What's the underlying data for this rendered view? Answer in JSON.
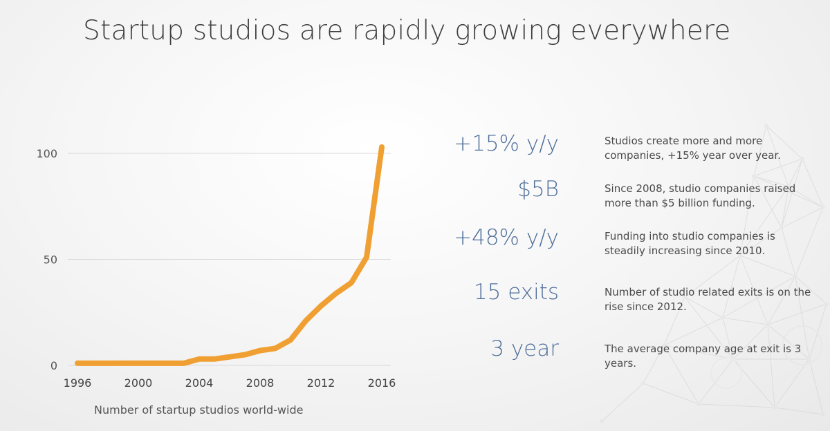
{
  "title": "Startup studios are rapidly growing everywhere",
  "caption": "Number of startup studios world-wide",
  "colors": {
    "line": "#f0a033",
    "stat": "#4f6f9a",
    "grid": "#d9d9d9"
  },
  "chart_data": {
    "type": "line",
    "x": [
      1996,
      1997,
      1998,
      1999,
      2000,
      2001,
      2002,
      2003,
      2004,
      2005,
      2006,
      2007,
      2008,
      2009,
      2010,
      2011,
      2012,
      2013,
      2014,
      2015,
      2016
    ],
    "values": [
      1,
      1,
      1,
      1,
      1,
      1,
      1,
      1,
      3,
      3,
      4,
      5,
      7,
      8,
      12,
      21,
      28,
      34,
      39,
      51,
      103
    ],
    "xticks": [
      "1996",
      "2000",
      "2004",
      "2008",
      "2012",
      "2016"
    ],
    "yticks": [
      "0",
      "50",
      "100"
    ],
    "xlim": [
      1996,
      2016
    ],
    "ylim": [
      0,
      100
    ],
    "grid": "horizontal",
    "xlabel": "",
    "ylabel": ""
  },
  "stats": [
    {
      "value": "+15% y/y",
      "desc": "Studios create more and more companies, +15% year over year."
    },
    {
      "value": "$5B",
      "desc": "Since 2008, studio companies raised more than $5 billion funding."
    },
    {
      "value": "+48% y/y",
      "desc": "Funding into studio companies is steadily increasing since 2010."
    },
    {
      "value": "15 exits",
      "desc": "Number of studio related exits is on the rise since 2012."
    },
    {
      "value": "3 year",
      "desc": "The average company age at exit is 3 years."
    }
  ]
}
